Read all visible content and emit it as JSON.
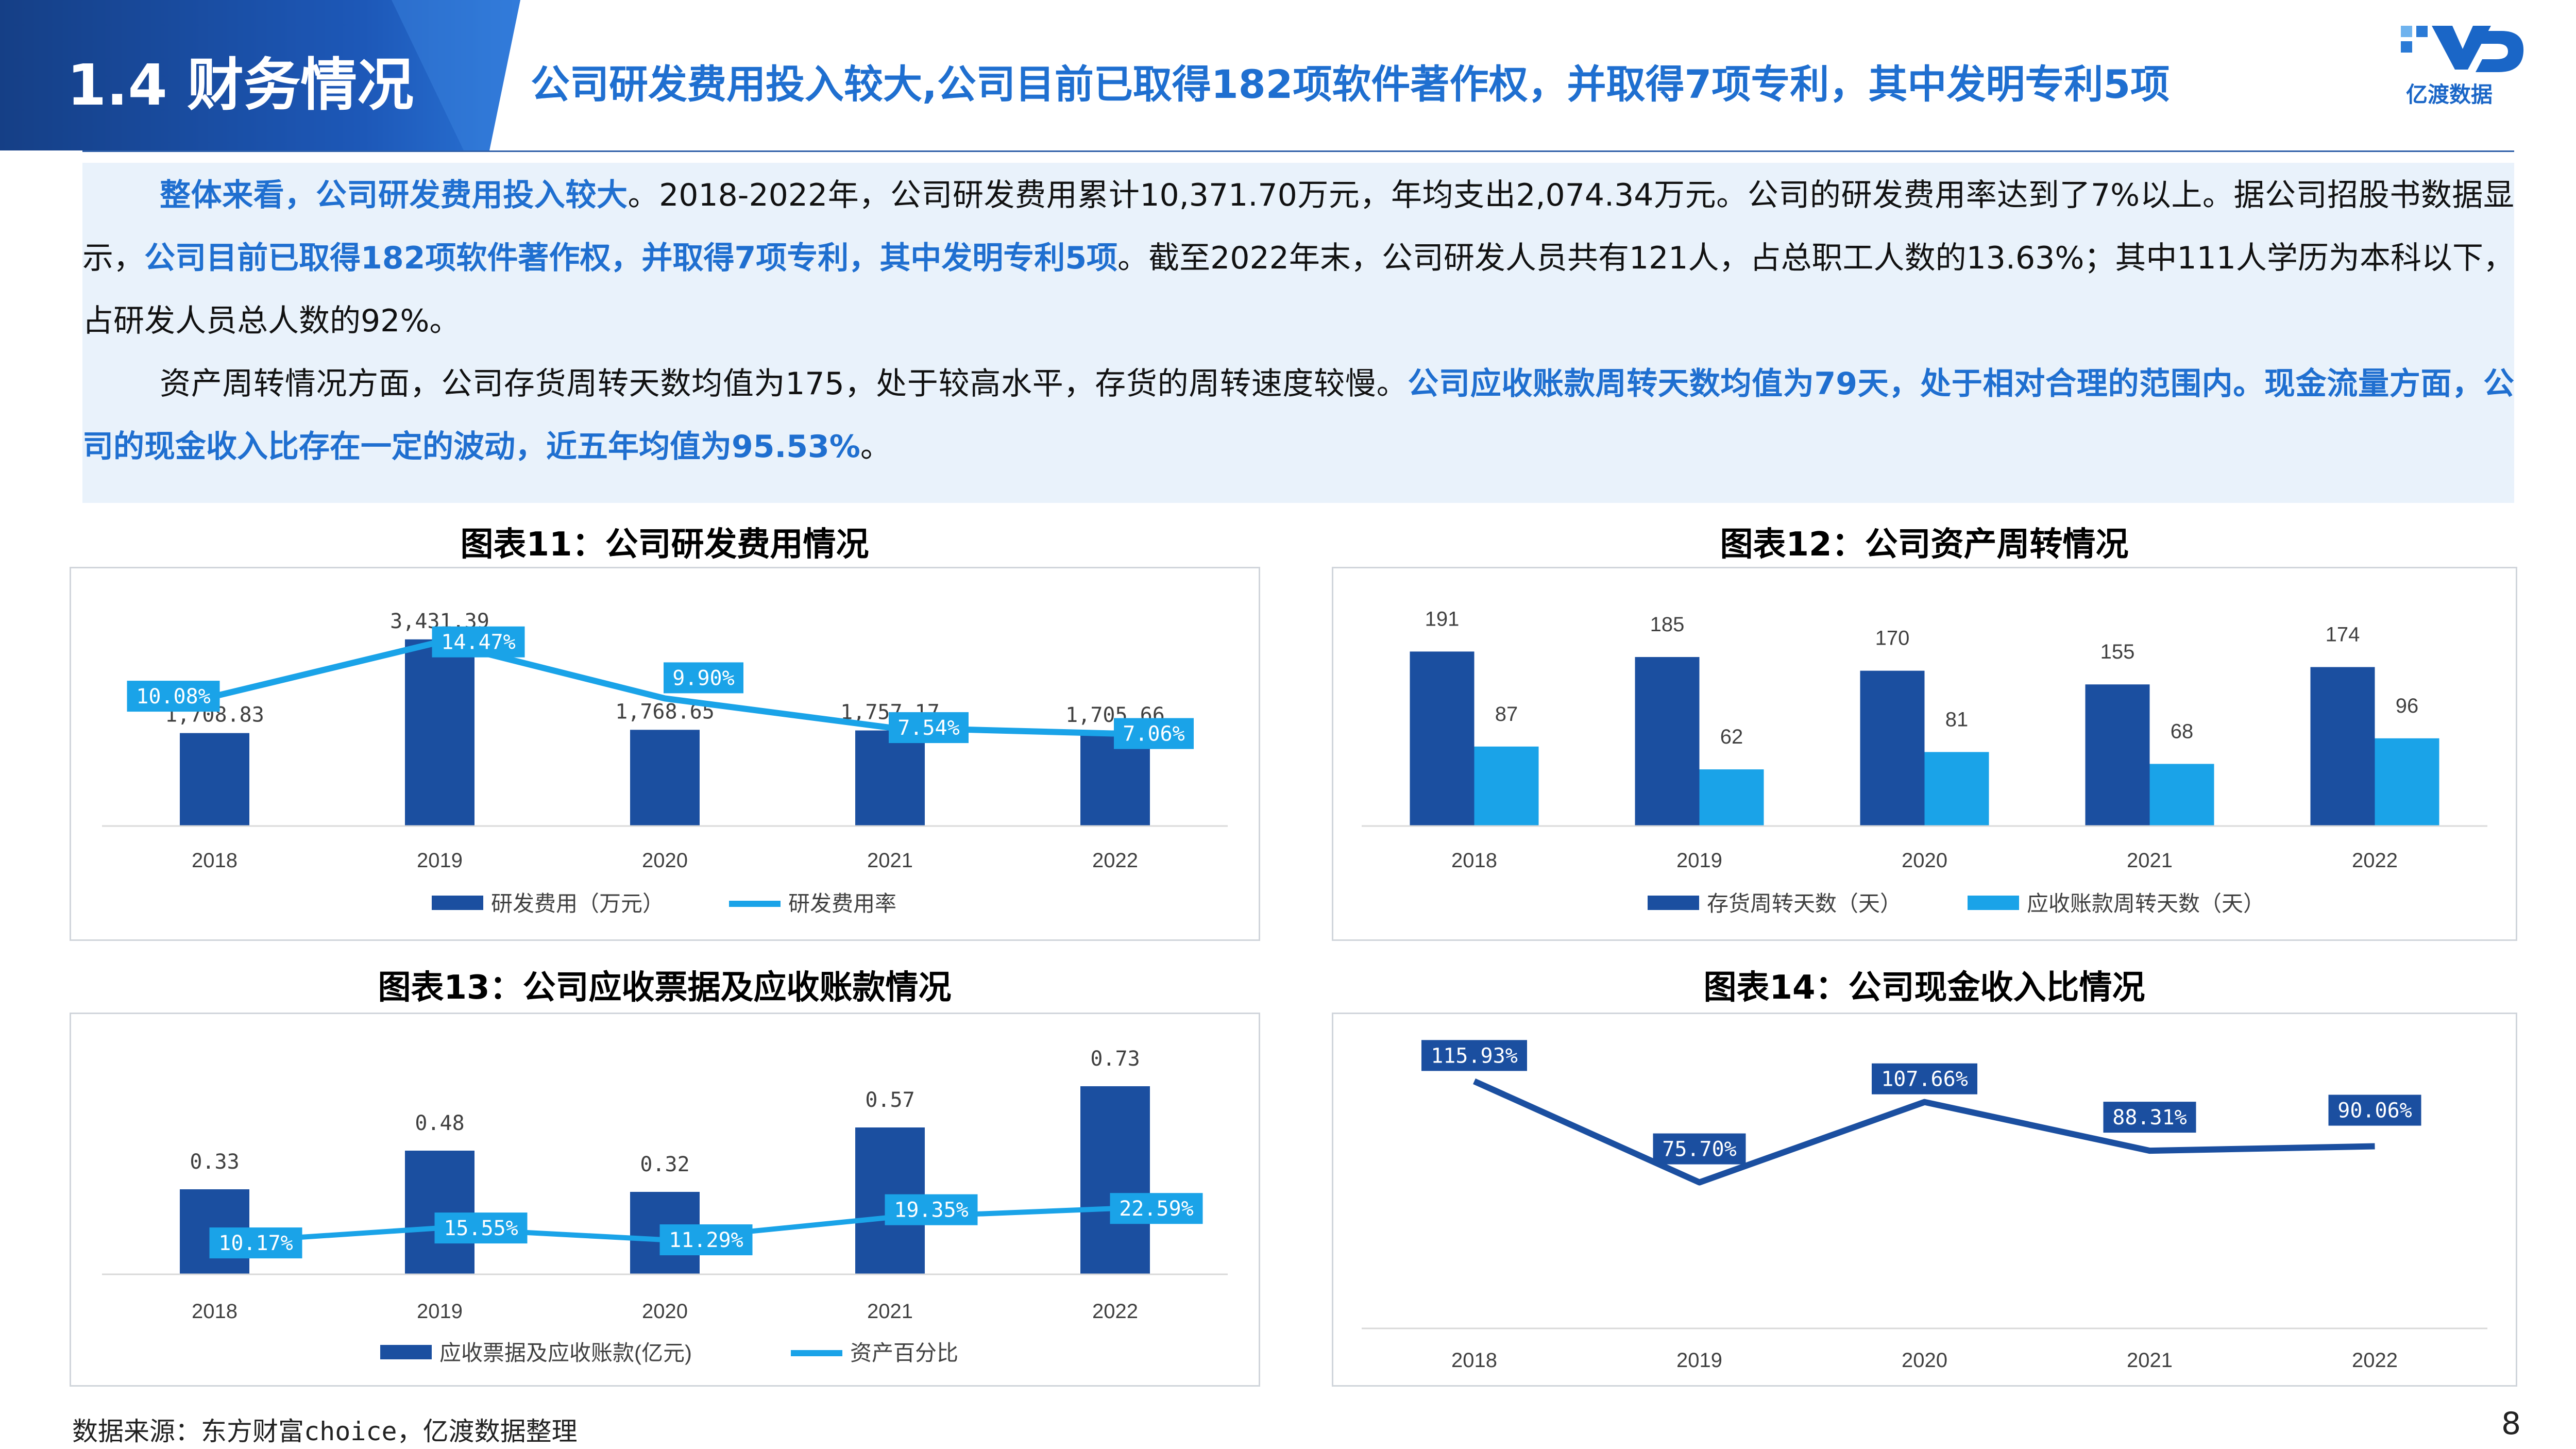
{
  "header": {
    "section": "1.4 财务情况",
    "title": "公司研发费用投入较大,公司目前已取得182项软件著作权，并取得7项专利，其中发明专利5项",
    "logo_text": "亿渡数据"
  },
  "intro": {
    "p1_hl1": "整体来看，公司研发费用投入较大",
    "p1_t1": "。2018-2022年，公司研发费用累计10,371.70万元，年均支出2,074.34万元。公司的研发费用率达到了7%以上。据公司招股书数据显示，",
    "p1_hl2": "公司目前已取得182项软件著作权，并取得7项专利，其中发明专利5项",
    "p1_t2": "。截至2022年末，公司研发人员共有121人，占总职工人数的13.63%；其中111人学历为本科以下，占研发人员总人数的92%。",
    "p2_t1": "资产周转情况方面，公司存货周转天数均值为175，处于较高水平，存货的周转速度较慢。",
    "p2_hl1": "公司应收账款周转天数均值为79天，处于相对合理的范围内。现金流量方面，公司的现金收入比存在一定的波动，近五年均值为95.53%",
    "p2_t2": "。"
  },
  "chart_data": [
    {
      "type": "bar+line",
      "title": "图表11：公司研发费用情况",
      "categories": [
        "2018",
        "2019",
        "2020",
        "2021",
        "2022"
      ],
      "series": [
        {
          "name": "研发费用（万元）",
          "kind": "bar",
          "values": [
            1708.83,
            3431.39,
            1768.65,
            1757.17,
            1705.66
          ],
          "labels": [
            "1,708.83",
            "3,431.39",
            "1,768.65",
            "1,757.17",
            "1,705.66"
          ],
          "color": "#1b4fa0"
        },
        {
          "name": "研发费用率",
          "kind": "line",
          "values": [
            10.08,
            14.47,
            9.9,
            7.54,
            7.06
          ],
          "labels": [
            "10.08%",
            "14.47%",
            "9.90%",
            "7.54%",
            "7.06%"
          ],
          "color": "#1aa3e8"
        }
      ]
    },
    {
      "type": "bar",
      "title": "图表12：公司资产周转情况",
      "categories": [
        "2018",
        "2019",
        "2020",
        "2021",
        "2022"
      ],
      "series": [
        {
          "name": "存货周转天数（天）",
          "values": [
            191,
            185,
            170,
            155,
            174
          ],
          "labels": [
            "191",
            "185",
            "170",
            "155",
            "174"
          ],
          "color": "#1b4fa0"
        },
        {
          "name": "应收账款周转天数（天）",
          "values": [
            87,
            62,
            81,
            68,
            96
          ],
          "labels": [
            "87",
            "62",
            "81",
            "68",
            "96"
          ],
          "color": "#1aa3e8"
        }
      ]
    },
    {
      "type": "bar+line",
      "title": "图表13：公司应收票据及应收账款情况",
      "categories": [
        "2018",
        "2019",
        "2020",
        "2021",
        "2022"
      ],
      "series": [
        {
          "name": "应收票据及应收账款(亿元)",
          "kind": "bar",
          "values": [
            0.33,
            0.48,
            0.32,
            0.57,
            0.73
          ],
          "labels": [
            "0.33",
            "0.48",
            "0.32",
            "0.57",
            "0.73"
          ],
          "color": "#1b4fa0"
        },
        {
          "name": "资产百分比",
          "kind": "line",
          "values": [
            10.17,
            15.55,
            11.29,
            19.35,
            22.59
          ],
          "labels": [
            "10.17%",
            "15.55%",
            "11.29%",
            "19.35%",
            "22.59%"
          ],
          "color": "#1aa3e8"
        }
      ]
    },
    {
      "type": "line",
      "title": "图表14：公司现金收入比情况",
      "categories": [
        "2018",
        "2019",
        "2020",
        "2021",
        "2022"
      ],
      "series": [
        {
          "values": [
            115.93,
            75.7,
            107.66,
            88.31,
            90.06
          ],
          "labels": [
            "115.93%",
            "75.70%",
            "107.66%",
            "88.31%",
            "90.06%"
          ],
          "color": "#1b4fa0"
        }
      ]
    }
  ],
  "footer": {
    "source": "数据来源：东方财富choice，亿渡数据整理",
    "page": "8"
  },
  "colors": {
    "dark_blue": "#1b4fa0",
    "light_blue": "#1aa3e8",
    "title_blue": "#1f6fd0"
  }
}
